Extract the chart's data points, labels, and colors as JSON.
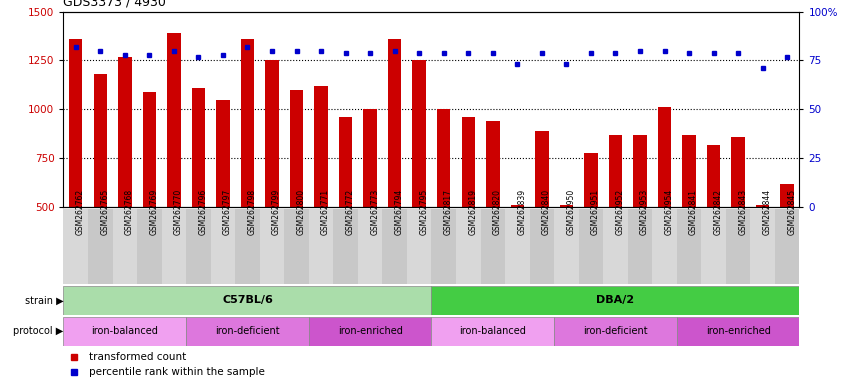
{
  "title": "GDS3373 / 4930",
  "samples": [
    "GSM262762",
    "GSM262765",
    "GSM262768",
    "GSM262769",
    "GSM262770",
    "GSM262796",
    "GSM262797",
    "GSM262798",
    "GSM262799",
    "GSM262800",
    "GSM262771",
    "GSM262772",
    "GSM262773",
    "GSM262794",
    "GSM262795",
    "GSM262817",
    "GSM262819",
    "GSM262820",
    "GSM262839",
    "GSM262840",
    "GSM262950",
    "GSM262951",
    "GSM262952",
    "GSM262953",
    "GSM262954",
    "GSM262841",
    "GSM262842",
    "GSM262843",
    "GSM262844",
    "GSM262845"
  ],
  "bar_values": [
    1360,
    1180,
    1270,
    1090,
    1390,
    1110,
    1050,
    1360,
    1250,
    1100,
    1120,
    960,
    1000,
    1360,
    1250,
    1000,
    960,
    940,
    510,
    890,
    510,
    780,
    870,
    870,
    1010,
    870,
    820,
    860,
    510,
    620
  ],
  "percentile_values": [
    82,
    80,
    78,
    78,
    80,
    77,
    78,
    82,
    80,
    80,
    80,
    79,
    79,
    80,
    79,
    79,
    79,
    79,
    73,
    79,
    73,
    79,
    79,
    80,
    80,
    79,
    79,
    79,
    71,
    77
  ],
  "ylim_left": [
    500,
    1500
  ],
  "ylim_right": [
    0,
    100
  ],
  "yticks_left": [
    500,
    750,
    1000,
    1250,
    1500
  ],
  "yticks_right": [
    0,
    25,
    50,
    75,
    100
  ],
  "bar_color": "#cc0000",
  "dot_color": "#0000cc",
  "strain_groups": [
    {
      "label": "C57BL/6",
      "start": 0,
      "end": 15,
      "color": "#aaddaa"
    },
    {
      "label": "DBA/2",
      "start": 15,
      "end": 30,
      "color": "#44cc44"
    }
  ],
  "protocol_groups": [
    {
      "label": "iron-balanced",
      "start": 0,
      "end": 5,
      "color": "#f0a0f0"
    },
    {
      "label": "iron-deficient",
      "start": 5,
      "end": 10,
      "color": "#dd77dd"
    },
    {
      "label": "iron-enriched",
      "start": 10,
      "end": 15,
      "color": "#cc55cc"
    },
    {
      "label": "iron-balanced",
      "start": 15,
      "end": 20,
      "color": "#f0a0f0"
    },
    {
      "label": "iron-deficient",
      "start": 20,
      "end": 25,
      "color": "#dd77dd"
    },
    {
      "label": "iron-enriched",
      "start": 25,
      "end": 30,
      "color": "#cc55cc"
    }
  ]
}
